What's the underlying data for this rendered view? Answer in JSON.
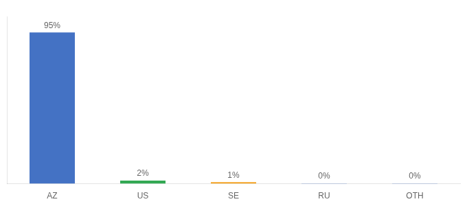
{
  "chart_data": {
    "type": "bar",
    "categories": [
      "AZ",
      "US",
      "SE",
      "RU",
      "OTH"
    ],
    "values": [
      95,
      2,
      1,
      0.3,
      0.3
    ],
    "value_labels": [
      "95%",
      "2%",
      "1%",
      "0%",
      "0%"
    ],
    "colors": [
      "#4472c4",
      "#33a853",
      "#f4a322",
      "#4472c4",
      "#4472c4"
    ],
    "ylim": [
      0,
      105
    ],
    "data_labels": true,
    "tick_labels": "x",
    "grid": false
  }
}
